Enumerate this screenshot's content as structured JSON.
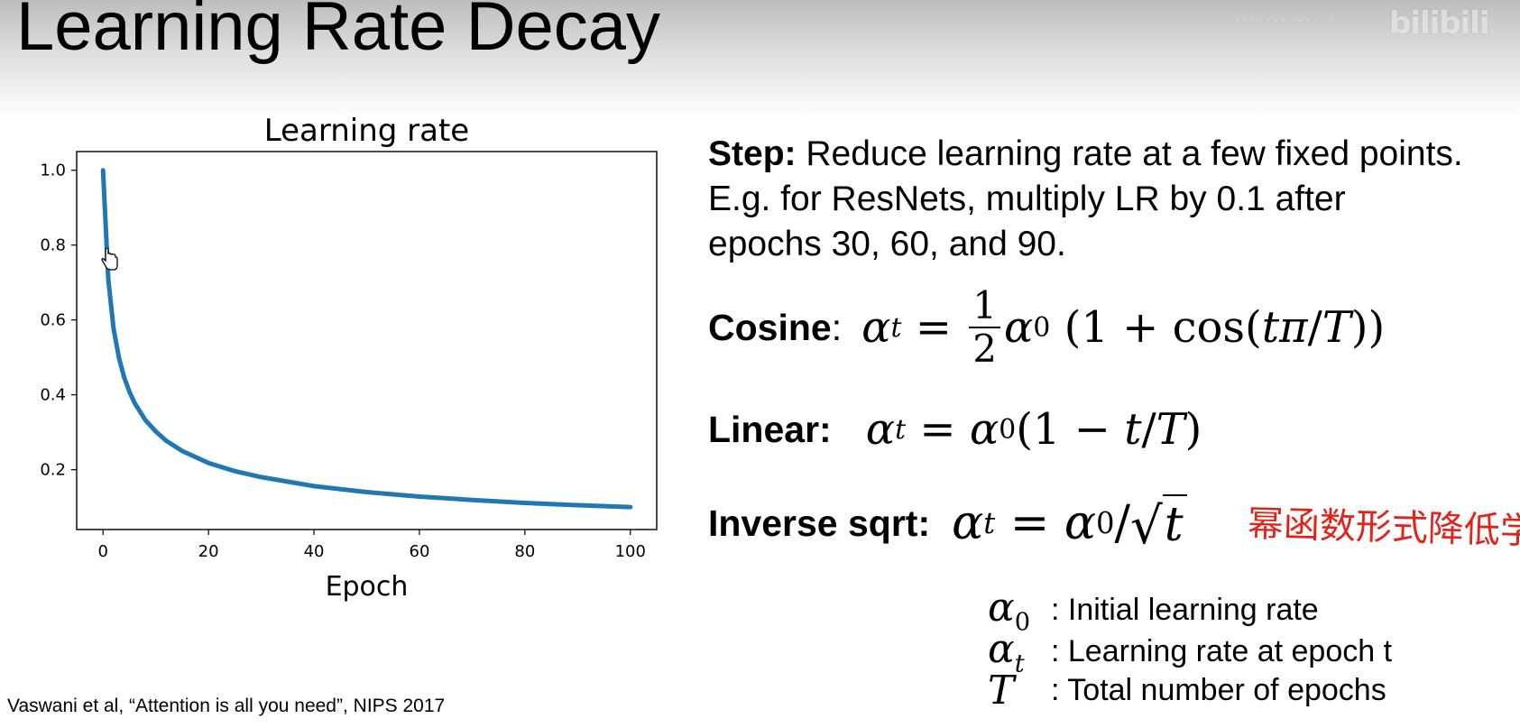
{
  "slide": {
    "title": "Learning Rate Decay",
    "watermark": "bilibili",
    "citation": "Vaswani et al, “Attention is all you need”, NIPS 2017"
  },
  "step": {
    "label": "Step:",
    "text": " Reduce learning rate at a few fixed points. E.g. for ResNets, multiply LR by 0.1 after epochs 30, 60, and 90."
  },
  "equations": {
    "cosine": {
      "label": "Cosine",
      "colon": ":"
    },
    "linear": {
      "label": "Linear:"
    },
    "inverse_sqrt": {
      "label": "Inverse sqrt:"
    }
  },
  "annotation": "幂函数形式降低学习率",
  "legend": [
    {
      "symbol": "α0",
      "text": ": Initial learning rate"
    },
    {
      "symbol": "αt",
      "text": ": Learning rate at epoch t"
    },
    {
      "symbol": "T",
      "text": ": Total number of epochs"
    }
  ],
  "chart_data": {
    "type": "line",
    "title": "Learning rate",
    "xlabel": "Epoch",
    "ylabel": "",
    "xlim": [
      -5,
      105
    ],
    "ylim": [
      0.04,
      1.05
    ],
    "xticks": [
      0,
      20,
      40,
      60,
      80,
      100
    ],
    "yticks": [
      0.2,
      0.4,
      0.6,
      0.8,
      1.0
    ],
    "ytick_labels": [
      "0.2",
      "0.4",
      "0.6",
      "0.8",
      "1.0"
    ],
    "grid": false,
    "line_color": "#1f77b4",
    "series": [
      {
        "x": [
          0,
          1,
          2,
          3,
          4,
          5,
          6,
          8,
          10,
          12,
          15,
          20,
          25,
          30,
          40,
          50,
          60,
          70,
          80,
          90,
          100
        ],
        "y": [
          1.0,
          0.707,
          0.577,
          0.5,
          0.447,
          0.408,
          0.378,
          0.333,
          0.302,
          0.277,
          0.25,
          0.218,
          0.196,
          0.18,
          0.156,
          0.14,
          0.128,
          0.119,
          0.111,
          0.105,
          0.1
        ]
      }
    ]
  }
}
